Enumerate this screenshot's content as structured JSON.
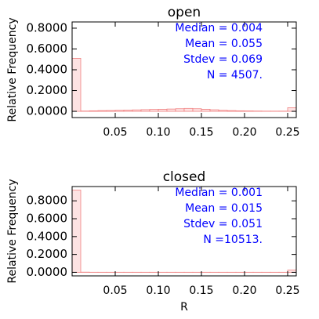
{
  "chart_data": [
    {
      "type": "histogram",
      "title": "open",
      "ylabel": "Relative Frequency",
      "bins": [
        0,
        0.01,
        0.02,
        0.03,
        0.04,
        0.05,
        0.06,
        0.07,
        0.08,
        0.09,
        0.1,
        0.11,
        0.12,
        0.13,
        0.14,
        0.15,
        0.16,
        0.17,
        0.18,
        0.19,
        0.2,
        0.21,
        0.22,
        0.23,
        0.24,
        0.25,
        0.26
      ],
      "values": [
        0.51,
        0.003,
        0.005,
        0.007,
        0.008,
        0.01,
        0.012,
        0.014,
        0.016,
        0.018,
        0.02,
        0.022,
        0.025,
        0.028,
        0.025,
        0.02,
        0.015,
        0.01,
        0.007,
        0.005,
        0.004,
        0.003,
        0.002,
        0.002,
        0.002,
        0.035
      ],
      "color": "#f08080",
      "xlim": [
        0,
        0.26
      ],
      "xticks": [
        0.05,
        {
          "value": 0.1,
          "label": "0.10"
        },
        0.15,
        {
          "value": 0.2,
          "label": "0.20"
        },
        0.25
      ],
      "ylim": [
        -0.06,
        0.86
      ],
      "yticks": [
        {
          "value": 0,
          "label": "0.0000"
        },
        {
          "value": 0.2,
          "label": "0.2000"
        },
        {
          "value": 0.4,
          "label": "0.4000"
        },
        {
          "value": 0.6,
          "label": "0.6000"
        },
        {
          "value": 0.8,
          "label": "0.8000"
        }
      ],
      "annotations": [
        "Median =   0.004",
        "Mean = 0.055",
        "Stdev = 0.069",
        "N =  4507."
      ]
    },
    {
      "type": "histogram",
      "title": "closed",
      "ylabel": "Relative Frequency",
      "xlabel": "R",
      "bins": [
        0,
        0.01,
        0.02,
        0.03,
        0.04,
        0.05,
        0.06,
        0.07,
        0.08,
        0.09,
        0.1,
        0.11,
        0.12,
        0.13,
        0.14,
        0.15,
        0.16,
        0.17,
        0.18,
        0.19,
        0.2,
        0.21,
        0.22,
        0.23,
        0.24,
        0.25,
        0.26
      ],
      "values": [
        0.92,
        0.002,
        0.001,
        0.001,
        0.001,
        0.001,
        0.001,
        0.001,
        0.001,
        0.001,
        0.001,
        0.001,
        0.001,
        0.001,
        0.001,
        0.001,
        0.001,
        0.001,
        0.001,
        0.001,
        0.001,
        0.001,
        0.001,
        0.001,
        0.001,
        0.025
      ],
      "color": "#f08080",
      "xlim": [
        0,
        0.26
      ],
      "xticks": [
        0.05,
        {
          "value": 0.1,
          "label": "0.10"
        },
        0.15,
        {
          "value": 0.2,
          "label": "0.20"
        },
        0.25
      ],
      "ylim": [
        -0.04,
        0.96
      ],
      "yticks": [
        {
          "value": 0,
          "label": "0.0000"
        },
        {
          "value": 0.2,
          "label": "0.2000"
        },
        {
          "value": 0.4,
          "label": "0.4000"
        },
        {
          "value": 0.6,
          "label": "0.6000"
        },
        {
          "value": 0.8,
          "label": "0.8000"
        }
      ],
      "annotations": [
        "Median =   0.001",
        "Mean =   0.015",
        "Stdev =  0.051",
        "N =10513."
      ]
    }
  ]
}
